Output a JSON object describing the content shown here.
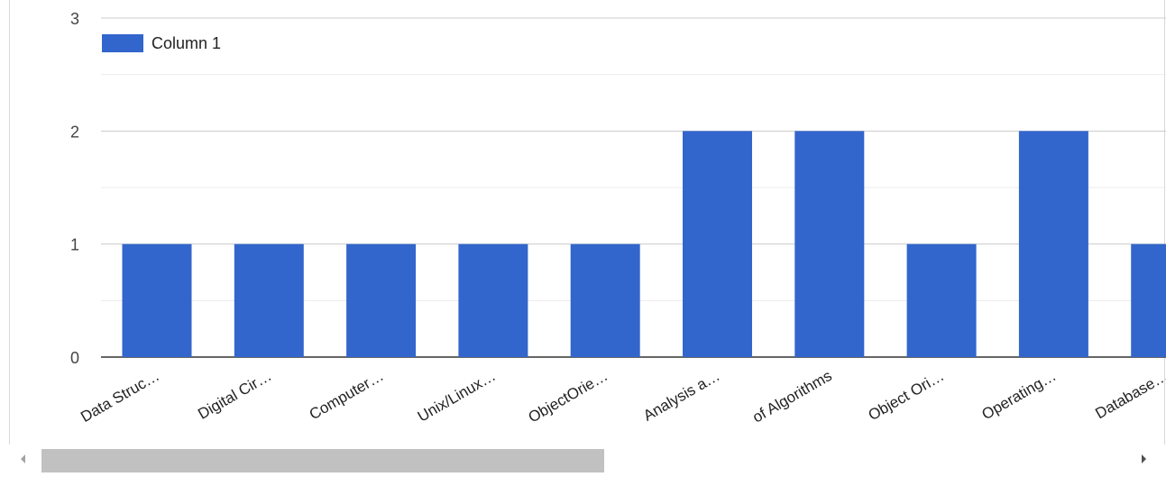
{
  "chart_data": {
    "type": "bar",
    "categories": [
      "Data Struc…",
      "Digital Cir…",
      "Computer…",
      "Unix/Linux…",
      "ObjectOrie…",
      "Analysis a…",
      "of Algorithms",
      "Object Ori…",
      "Operating…",
      "Database…"
    ],
    "series": [
      {
        "name": "Column 1",
        "values": [
          1,
          1,
          1,
          1,
          1,
          2,
          2,
          1,
          2,
          1
        ],
        "color": "#3366cc"
      }
    ],
    "yticks": [
      "0",
      "1",
      "2",
      "3"
    ],
    "ylim": [
      0,
      3
    ],
    "grid": true,
    "minor_grid": true,
    "legend_position": "top-left",
    "title": "",
    "xlabel": "",
    "ylabel": ""
  },
  "scrollbar": {
    "left_icon": "triangle-left",
    "right_icon": "triangle-right"
  }
}
